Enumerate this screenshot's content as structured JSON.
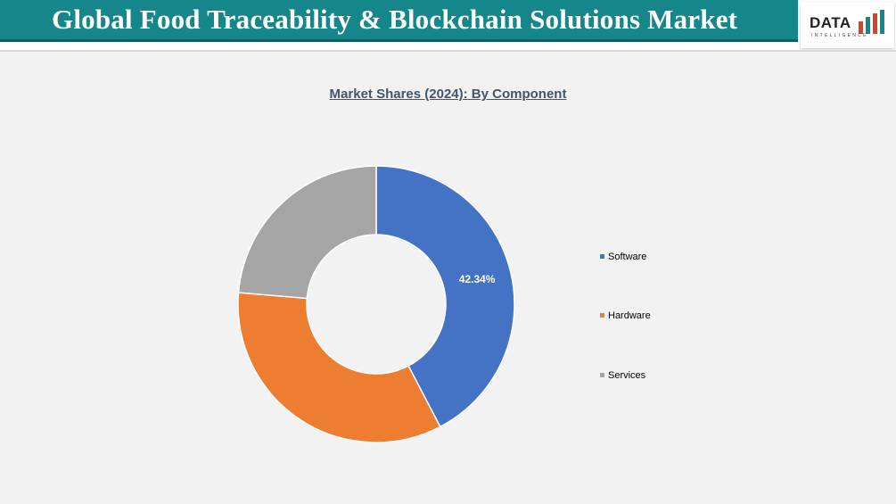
{
  "header": {
    "title": "Global Food Traceability & Blockchain Solutions Market",
    "logo_text": "DATA",
    "logo_subtext": "INTELLIGENCE",
    "banner_color": "#15878a"
  },
  "chart_data": {
    "type": "pie",
    "title": "Market Shares (2024): By Component",
    "donut": true,
    "legend_position": "right",
    "categories": [
      "Software",
      "Hardware",
      "Services"
    ],
    "values": [
      42.34,
      34.0,
      23.66
    ],
    "colors": [
      "#4472c4",
      "#ed7d31",
      "#a5a5a5"
    ],
    "data_labels": [
      "42.34%",
      "",
      ""
    ]
  }
}
